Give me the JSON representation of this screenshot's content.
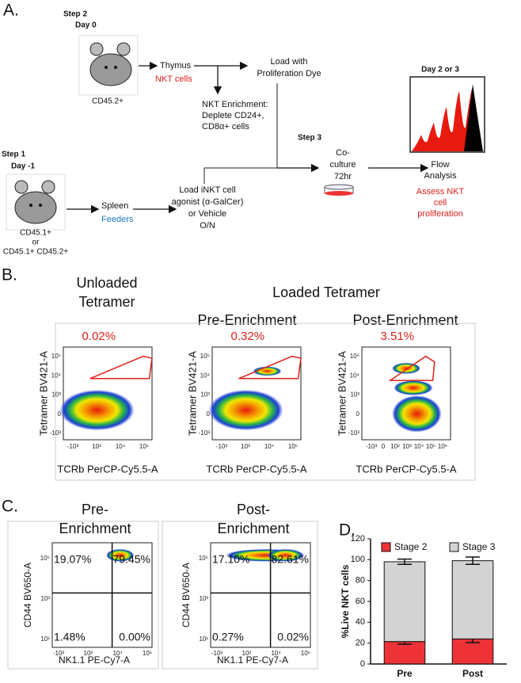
{
  "panel_a": {
    "label": "A.",
    "step2": "Step 2",
    "day0": "Day 0",
    "mouse2_label": "CD45.2+",
    "thymus": "Thymus",
    "nkt_cells": "NKT cells",
    "load_dye": [
      "Load with",
      "Proliferation Dye"
    ],
    "enrichment": [
      "NKT Enrichment:",
      "Deplete CD24+,",
      "CD8α+ cells"
    ],
    "step1": "Step 1",
    "day_minus1": "Day -1",
    "mouse1_label": [
      "CD45.1+",
      "or",
      "CD45.1+ CD45.2+"
    ],
    "spleen": "Spleen",
    "feeders": "Feeders",
    "load_agonist": [
      "Load iNKT cell",
      "agonist (α-GalCer)",
      "or Vehicle",
      "O/N"
    ],
    "step3": "Step 3",
    "coculture": [
      "Co-",
      "culture",
      "72hr"
    ],
    "day23": "Day 2 or 3",
    "flow": [
      "Flow",
      "Analysis"
    ],
    "assess": [
      "Assess NKT",
      "cell",
      "proliferation"
    ]
  },
  "panel_b": {
    "label": "B.",
    "unloaded": [
      "Unloaded",
      "Tetramer"
    ],
    "loaded": "Loaded Tetramer",
    "pre": "Pre-Enrichment",
    "post": "Post-Enrichment",
    "plots": [
      {
        "percent": "0.02%",
        "ylabel": "Tetramer BV421-A",
        "xlabel": "TCRb PerCP-Cy5.5-A",
        "yticks": [
          "10⁵",
          "10⁴",
          "10³",
          "0",
          "-10³"
        ],
        "xticks": [
          "-10³",
          "10³",
          "10⁴",
          "10⁵"
        ]
      },
      {
        "percent": "0.32%",
        "ylabel": "Tetramer BV421-A",
        "xlabel": "TCRb PerCP-Cy5.5-A",
        "yticks": [
          "10⁵",
          "10⁴",
          "10³",
          "0",
          "-10³"
        ],
        "xticks": [
          "-10³",
          "10³",
          "10⁴",
          "10⁵"
        ]
      },
      {
        "percent": "3.51%",
        "ylabel": "Tetramer BV421-A",
        "xlabel": "TCRb PerCP-Cy5.5-A",
        "yticks": [
          "10⁵",
          "10⁴",
          "10³",
          "0",
          "-10³"
        ],
        "xticks": [
          "-10³",
          "0",
          "10²",
          "10³",
          "10⁴",
          "10⁵",
          "10⁶"
        ]
      }
    ]
  },
  "panel_c": {
    "label": "C.",
    "plots": [
      {
        "title": [
          "Pre-",
          "Enrichment"
        ],
        "quadrants": [
          "19.07%",
          "79.45%",
          "1.48%",
          "0.00%"
        ],
        "ylabel": "CD44 BV650-A",
        "xlabel": "NK1.1 PE-Cy7-A",
        "yticks": [
          "10⁵",
          "10³",
          "10¹"
        ],
        "xticks": [
          "-10²",
          "10²",
          "10⁴",
          "10⁶"
        ]
      },
      {
        "title": [
          "Post-",
          "Enrichment"
        ],
        "quadrants": [
          "17.10%",
          "82.61%",
          "0.27%",
          "0.02%"
        ],
        "ylabel": "CD44 BV650-A",
        "xlabel": "NK1.1 PE-Cy7-A",
        "yticks": [
          "10⁵",
          "10³",
          "10¹"
        ],
        "xticks": [
          "-10²",
          "10²",
          "10⁴",
          "10⁶"
        ]
      }
    ]
  },
  "chart_data": {
    "type": "stacked-bar",
    "label": "D.",
    "y_label": "%Live NKT cells",
    "categories": [
      "Pre",
      "Post"
    ],
    "series": [
      {
        "name": "Stage 2",
        "color": "#ee3338",
        "values": [
          21.5,
          24
        ],
        "errors": [
          2.5,
          3.5
        ]
      },
      {
        "name": "Stage 3",
        "color": "#d3d3d3",
        "values": [
          76.5,
          75
        ],
        "errors": [
          2.5,
          3.5
        ]
      }
    ],
    "ylim": [
      0,
      120
    ],
    "yticks": [
      0,
      20,
      40,
      60,
      80,
      100,
      120
    ]
  }
}
